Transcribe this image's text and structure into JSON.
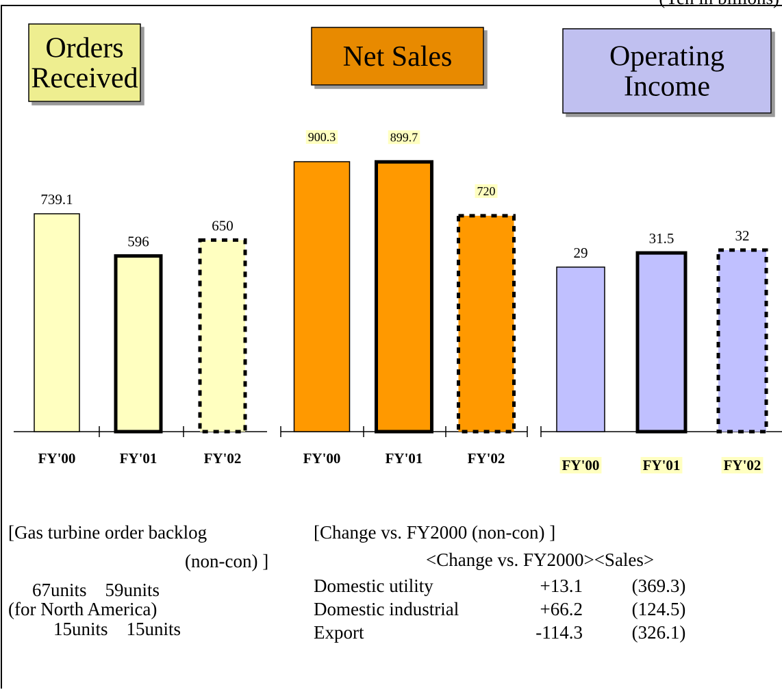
{
  "unit": "(Yen in billions)",
  "chart_data": [
    {
      "type": "bar",
      "title": [
        "Orders",
        "Received"
      ],
      "title_color": "#eeee90",
      "color": "#ffffc0",
      "categories": [
        "FY'00",
        "FY'01",
        "FY'02"
      ],
      "values": [
        739.1,
        596,
        650
      ]
    },
    {
      "type": "bar",
      "title": [
        "Net Sales"
      ],
      "title_color": "#e88a00",
      "color": "#ff9900",
      "categories": [
        "FY'00",
        "FY'01",
        "FY'02"
      ],
      "values": [
        900.3,
        899.7,
        720
      ],
      "value_label_background": "#ffffc0"
    },
    {
      "type": "bar",
      "title": [
        "Operating",
        "Income"
      ],
      "title_color": "#c0c0f0",
      "color": "#c0c0ff",
      "categories": [
        "FY'00",
        "FY'01",
        "FY'02"
      ],
      "values": [
        29,
        31.5,
        32
      ],
      "category_label_background": "#ffffc0"
    }
  ],
  "backlog": {
    "title": "[Gas turbine order backlog",
    "title2": "(non-con) ]",
    "line1": "67units    59units",
    "line2": "(for North America)",
    "line3": "15units    15units"
  },
  "change": {
    "title": "[Change vs. FY2000 (non-con) ]",
    "header": "<Change vs. FY2000><Sales>",
    "rows": [
      [
        "Domestic utility",
        "+13.1",
        "(369.3)"
      ],
      [
        "Domestic industrial",
        "+66.2",
        "(124.5)"
      ],
      [
        "Export",
        "-114.3",
        "(326.1)"
      ]
    ]
  }
}
